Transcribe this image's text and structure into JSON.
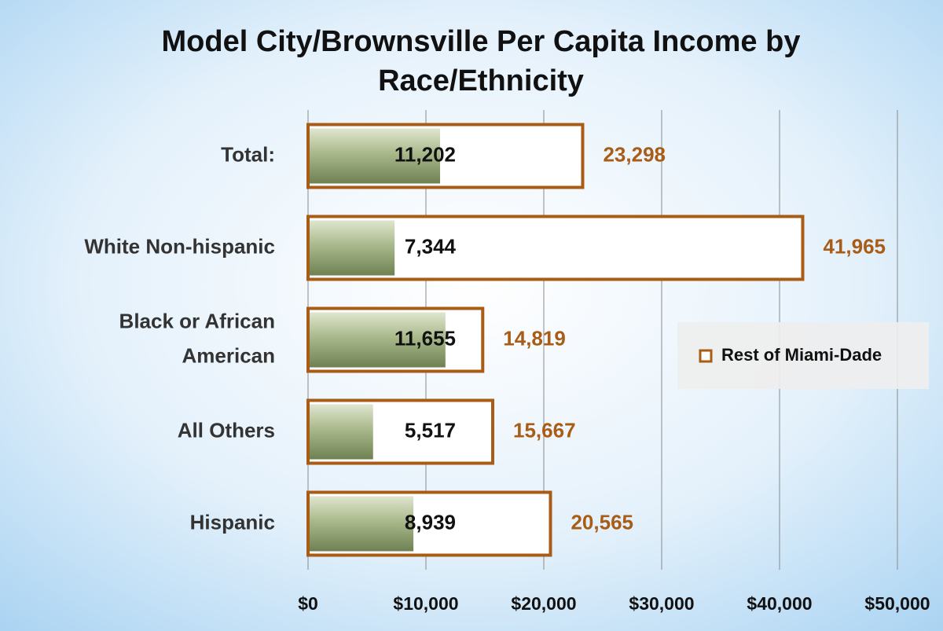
{
  "chart_data": {
    "type": "bar",
    "orientation": "horizontal",
    "title": "Model City/Brownsville Per Capita Income by Race/Ethnicity",
    "categories": [
      "Total:",
      "White Non-hispanic",
      "Black or African American",
      "All Others",
      "Hispanic"
    ],
    "series": [
      {
        "color": "#9aab7c",
        "values": [
          11202,
          7344,
          11655,
          5517,
          8939
        ],
        "value_labels": [
          "11,202",
          "7,344",
          "11,655",
          "5,517",
          "8,939"
        ]
      },
      {
        "name": "Rest of Miami-Dade",
        "color": "#a85c16",
        "values": [
          23298,
          41965,
          14819,
          15667,
          20565
        ],
        "value_labels": [
          "23,298",
          "41,965",
          "14,819",
          "15,667",
          "20,565"
        ]
      }
    ],
    "xlim": [
      0,
      50000
    ],
    "xticks": [
      {
        "value": 0,
        "label": "$0"
      },
      {
        "value": 10000,
        "label": "$10,000"
      },
      {
        "value": 20000,
        "label": "$20,000"
      },
      {
        "value": 30000,
        "label": "$30,000"
      },
      {
        "value": 40000,
        "label": "$40,000"
      },
      {
        "value": 50000,
        "label": "$50,000"
      }
    ],
    "grid": true,
    "legend": "right"
  }
}
